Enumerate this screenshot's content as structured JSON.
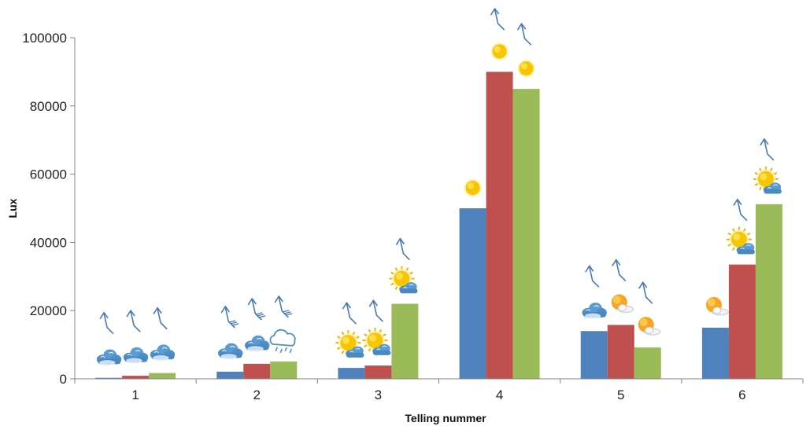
{
  "chart_data": {
    "type": "bar",
    "title": "",
    "xlabel": "Telling nummer",
    "ylabel": "Lux",
    "categories": [
      "1",
      "2",
      "3",
      "4",
      "5",
      "6"
    ],
    "ylim": [
      0,
      100000
    ],
    "yticks": [
      0,
      20000,
      40000,
      60000,
      80000,
      100000
    ],
    "grid": false,
    "legend": "none",
    "series": [
      {
        "color": "#4f81bd",
        "values": [
          300,
          2100,
          3200,
          50000,
          14000,
          15000
        ]
      },
      {
        "color": "#c0504d",
        "values": [
          900,
          4400,
          3900,
          90000,
          15800,
          33500
        ]
      },
      {
        "color": "#9bbb59",
        "values": [
          1700,
          5100,
          22000,
          85000,
          9200,
          51200
        ]
      }
    ],
    "weather_icons": [
      [
        "cloud-icon",
        "cloud-icon",
        "cloud-icon"
      ],
      [
        "cloud-icon",
        "cloud-icon",
        "rain-cloud-icon"
      ],
      [
        "sun-behind-cloud-icon",
        "sun-behind-cloud-icon",
        "sun-behind-cloud-icon"
      ],
      [
        "sun-icon",
        "sun-icon",
        "sun-icon"
      ],
      [
        "cloud-icon",
        "sun-small-cloud-icon",
        "sun-small-cloud-icon"
      ],
      [
        "sun-small-cloud-icon",
        "sun-behind-cloud-icon",
        "sun-behind-cloud-icon"
      ]
    ],
    "wind_icons": [
      [
        "wind-arrow-icon",
        "wind-arrow-icon",
        "wind-arrow-icon"
      ],
      [
        "wind-arrow-strong-icon",
        "wind-arrow-strong-icon",
        "wind-arrow-strong-icon"
      ],
      [
        "wind-arrow-icon",
        "wind-arrow-icon",
        "wind-arrow-icon"
      ],
      [
        "none",
        "wind-arrow-icon",
        "wind-arrow-icon"
      ],
      [
        "wind-arrow-icon",
        "wind-arrow-icon",
        "wind-arrow-icon"
      ],
      [
        "none",
        "wind-arrow-icon",
        "wind-arrow-icon"
      ]
    ]
  }
}
